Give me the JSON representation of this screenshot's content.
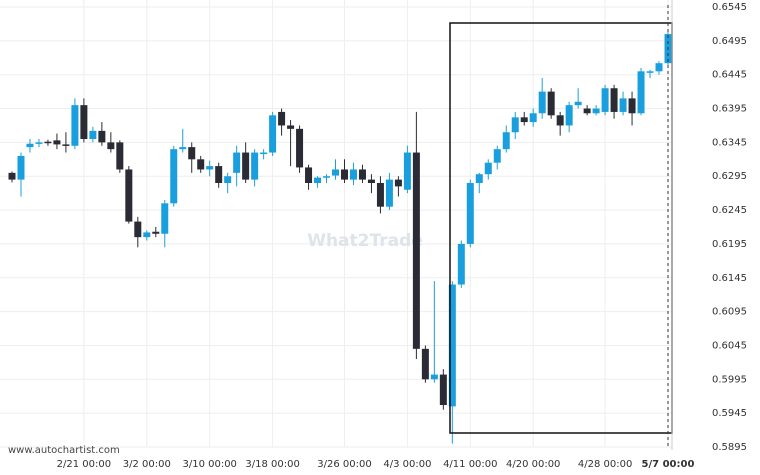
{
  "chart_data": {
    "type": "candlestick",
    "source": "www.autochartist.com",
    "watermark": "What2Trade",
    "categories": [
      null,
      null,
      null,
      null,
      null,
      null,
      null,
      null,
      "2/21 00:00",
      null,
      null,
      null,
      null,
      null,
      null,
      "3/2 00:00",
      null,
      null,
      null,
      null,
      null,
      null,
      "3/10 00:00",
      null,
      null,
      null,
      null,
      null,
      null,
      "3/18 00:00",
      null,
      null,
      null,
      null,
      null,
      null,
      null,
      "3/26 00:00",
      null,
      null,
      null,
      null,
      null,
      null,
      "4/3 00:00",
      null,
      null,
      null,
      null,
      null,
      null,
      "4/11 00:00",
      null,
      null,
      null,
      null,
      null,
      null,
      "4/20 00:00",
      null,
      null,
      null,
      null,
      null,
      null,
      null,
      "4/28 00:00",
      null,
      null,
      null,
      null,
      null,
      null,
      "5/7 00:00"
    ],
    "open": [
      0.63,
      0.629,
      0.6338,
      0.6343,
      0.6346,
      0.6348,
      0.6342,
      0.634,
      0.64,
      0.635,
      0.6362,
      0.6345,
      0.6345,
      0.6305,
      0.6228,
      0.6205,
      0.6213,
      0.621,
      0.6255,
      0.6335,
      0.6338,
      0.632,
      0.6305,
      0.631,
      0.6285,
      0.63,
      0.633,
      0.629,
      0.6328,
      0.633,
      0.639,
      0.637,
      0.6365,
      0.6308,
      0.6285,
      0.6293,
      0.6296,
      0.6305,
      0.629,
      0.6305,
      0.629,
      0.6285,
      0.625,
      0.629,
      0.6275,
      0.633,
      0.604,
      0.5995,
      0.6002,
      0.5955,
      0.6135,
      0.6195,
      0.6285,
      0.6298,
      0.6315,
      0.6335,
      0.636,
      0.6382,
      0.6375,
      0.6388,
      0.642,
      0.6385,
      0.637,
      0.64,
      0.6395,
      0.6388,
      0.639,
      0.6425,
      0.639,
      0.641,
      0.6388,
      0.6448,
      0.645,
      0.6462
    ],
    "high": [
      0.6302,
      0.633,
      0.635,
      0.635,
      0.6349,
      0.6358,
      0.636,
      0.641,
      0.641,
      0.6368,
      0.6375,
      0.636,
      0.6348,
      0.631,
      0.6235,
      0.6215,
      0.622,
      0.626,
      0.634,
      0.6365,
      0.6345,
      0.6325,
      0.6318,
      0.6315,
      0.63,
      0.634,
      0.6345,
      0.6335,
      0.6335,
      0.639,
      0.6395,
      0.6378,
      0.637,
      0.6312,
      0.6295,
      0.6298,
      0.632,
      0.632,
      0.6315,
      0.6312,
      0.6298,
      0.6295,
      0.63,
      0.6295,
      0.634,
      0.639,
      0.6045,
      0.614,
      0.601,
      0.614,
      0.62,
      0.629,
      0.63,
      0.632,
      0.634,
      0.637,
      0.639,
      0.639,
      0.6395,
      0.644,
      0.6425,
      0.639,
      0.6405,
      0.6425,
      0.64,
      0.64,
      0.643,
      0.643,
      0.642,
      0.642,
      0.6455,
      0.6452,
      0.6465,
      0.651
    ],
    "low": [
      0.6286,
      0.6265,
      0.633,
      0.6338,
      0.634,
      0.6335,
      0.633,
      0.6335,
      0.6345,
      0.6345,
      0.634,
      0.633,
      0.63,
      0.6225,
      0.619,
      0.62,
      0.6205,
      0.619,
      0.625,
      0.633,
      0.63,
      0.63,
      0.6295,
      0.6278,
      0.627,
      0.628,
      0.6285,
      0.628,
      0.632,
      0.6325,
      0.6355,
      0.631,
      0.63,
      0.6275,
      0.6278,
      0.6285,
      0.629,
      0.6285,
      0.6282,
      0.6285,
      0.627,
      0.624,
      0.6245,
      0.6265,
      0.627,
      0.6025,
      0.599,
      0.599,
      0.595,
      0.59,
      0.613,
      0.619,
      0.627,
      0.629,
      0.6305,
      0.633,
      0.635,
      0.637,
      0.6368,
      0.638,
      0.638,
      0.6355,
      0.636,
      0.6395,
      0.6385,
      0.6385,
      0.6385,
      0.638,
      0.6385,
      0.637,
      0.6385,
      0.644,
      0.6445,
      0.6455
    ],
    "close": [
      0.629,
      0.6325,
      0.6343,
      0.6345,
      0.6345,
      0.6342,
      0.634,
      0.64,
      0.635,
      0.6362,
      0.6345,
      0.6335,
      0.6305,
      0.6228,
      0.6205,
      0.6212,
      0.621,
      0.6255,
      0.6335,
      0.6338,
      0.632,
      0.6305,
      0.631,
      0.6285,
      0.6295,
      0.633,
      0.629,
      0.633,
      0.633,
      0.6385,
      0.637,
      0.6365,
      0.6308,
      0.6285,
      0.6293,
      0.6295,
      0.6305,
      0.629,
      0.6305,
      0.629,
      0.6285,
      0.625,
      0.629,
      0.628,
      0.633,
      0.604,
      0.5995,
      0.6002,
      0.5957,
      0.6135,
      0.6195,
      0.6285,
      0.6298,
      0.6315,
      0.6335,
      0.636,
      0.6382,
      0.6375,
      0.6388,
      0.642,
      0.6385,
      0.637,
      0.64,
      0.6405,
      0.6388,
      0.6395,
      0.6425,
      0.639,
      0.641,
      0.6388,
      0.645,
      0.645,
      0.6462,
      0.6505
    ],
    "up_color": "#1a9fde",
    "down_color": "#2b2b36",
    "ylim": [
      0.5895,
      0.6545
    ],
    "yticks": [
      0.5895,
      0.5945,
      0.5995,
      0.6045,
      0.6095,
      0.6145,
      0.6195,
      0.6245,
      0.6295,
      0.6345,
      0.6395,
      0.6445,
      0.6495,
      0.6545
    ],
    "grid": true
  }
}
